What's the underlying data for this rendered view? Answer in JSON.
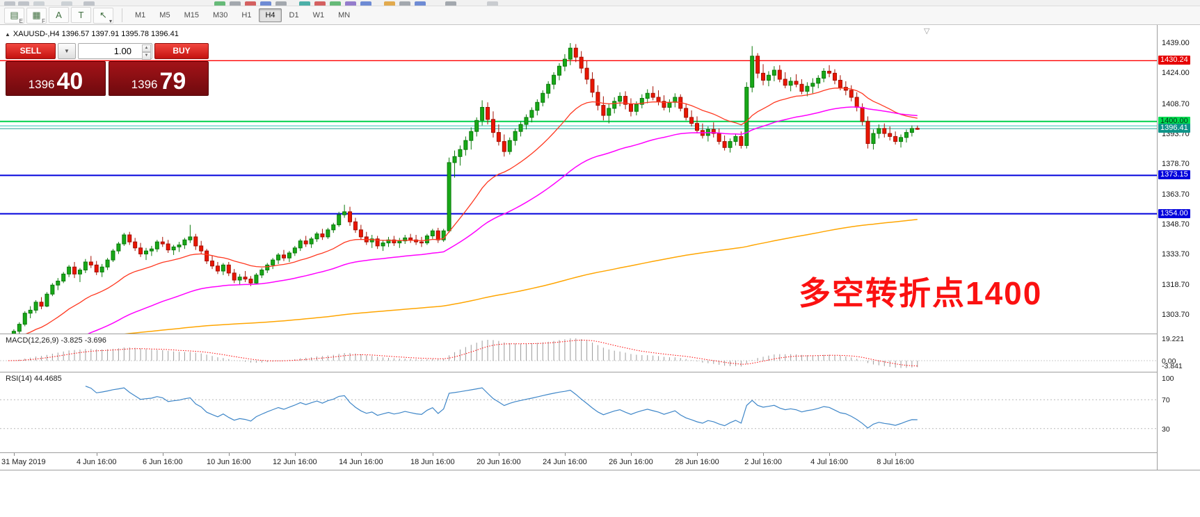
{
  "toolbar": {
    "tools": [
      {
        "name": "charts-icon",
        "glyph": "▤",
        "sub": "E"
      },
      {
        "name": "grid-icon",
        "glyph": "▦",
        "sub": "F"
      },
      {
        "name": "a-tool-icon",
        "glyph": "A",
        "sub": ""
      },
      {
        "name": "text-label-icon",
        "glyph": "T",
        "sub": ""
      },
      {
        "name": "pointer-tool-icon",
        "glyph": "↖",
        "sub": "▾"
      }
    ],
    "timeframes": [
      {
        "label": "M1",
        "active": false
      },
      {
        "label": "M5",
        "active": false
      },
      {
        "label": "M15",
        "active": false
      },
      {
        "label": "M30",
        "active": false
      },
      {
        "label": "H1",
        "active": false
      },
      {
        "label": "H4",
        "active": true
      },
      {
        "label": "D1",
        "active": false
      },
      {
        "label": "W1",
        "active": false
      },
      {
        "label": "MN",
        "active": false
      }
    ]
  },
  "cutoff_icons": [
    {
      "x": 6,
      "c": "#b9bec4"
    },
    {
      "x": 26,
      "c": "#b9bec4"
    },
    {
      "x": 48,
      "c": "#c8cdd2"
    },
    {
      "x": 88,
      "c": "#c8cdd2"
    },
    {
      "x": 120,
      "c": "#b9bec4"
    },
    {
      "x": 308,
      "c": "#57b46a"
    },
    {
      "x": 330,
      "c": "#9aa0a6"
    },
    {
      "x": 352,
      "c": "#d05050"
    },
    {
      "x": 374,
      "c": "#5f7fd0"
    },
    {
      "x": 396,
      "c": "#9aa0a6"
    },
    {
      "x": 430,
      "c": "#3aa7a0"
    },
    {
      "x": 452,
      "c": "#d05050"
    },
    {
      "x": 474,
      "c": "#57b46a"
    },
    {
      "x": 496,
      "c": "#8a6fc8"
    },
    {
      "x": 518,
      "c": "#5f7fd0"
    },
    {
      "x": 552,
      "c": "#e0a23c"
    },
    {
      "x": 574,
      "c": "#9aa0a6"
    },
    {
      "x": 596,
      "c": "#5f7fd0"
    },
    {
      "x": 640,
      "c": "#9aa0a6"
    },
    {
      "x": 700,
      "c": "#c4c8cc"
    }
  ],
  "chart": {
    "symbol_header": "XAUUSD-,H4  1396.57 1397.91 1395.78 1396.41",
    "collapse_glyph": "▲",
    "shift_marker_glyph": "▽",
    "annotation_text": "多空转折点1400"
  },
  "one_click": {
    "sell_label": "SELL",
    "buy_label": "BUY",
    "volume": "1.00",
    "dropdown_glyph": "▼",
    "spinner_up": "▲",
    "spinner_down": "▼",
    "bid_int": "1396",
    "bid_pips": "40",
    "ask_int": "1396",
    "ask_pips": "79"
  },
  "panels": {
    "macd_label": "MACD(12,26,9) -3.825 -3.696",
    "rsi_label": "RSI(14) 44.4685"
  },
  "chart_data": {
    "type": "candlestick",
    "symbol": "XAUUSD-",
    "timeframe": "H4",
    "last_ohlc": {
      "open": 1396.57,
      "high": 1397.91,
      "low": 1395.78,
      "close": 1396.41
    },
    "y_ticks": [
      "1439.00",
      "1424.00",
      "1408.70",
      "1393.70",
      "1378.70",
      "1363.70",
      "1348.70",
      "1333.70",
      "1318.70",
      "1303.70"
    ],
    "hlines": [
      {
        "price": 1430.24,
        "color": "#ff0000",
        "width": 1.4,
        "label": "1430.24",
        "label_bg": "#e60000",
        "label_fg": "#ffffff"
      },
      {
        "price": 1400.0,
        "color": "#00d24b",
        "width": 2,
        "label": "1400.00",
        "label_bg": "#00dc50",
        "label_fg": "#00341a"
      },
      {
        "price": 1397.8,
        "color": "#2fbfb0",
        "width": 1,
        "label": null,
        "label_bg": null,
        "label_fg": null
      },
      {
        "price": 1396.41,
        "color": "#1ba393",
        "width": 1,
        "label": "1396.41",
        "label_bg": "#0e9488",
        "label_fg": "#ffffff"
      },
      {
        "price": 1373.15,
        "color": "#0000dc",
        "width": 2,
        "label": "1373.15",
        "label_bg": "#0000dc",
        "label_fg": "#ffffff"
      },
      {
        "price": 1354.0,
        "color": "#0000dc",
        "width": 2,
        "label": "1354.00",
        "label_bg": "#0000dc",
        "label_fg": "#ffffff"
      }
    ],
    "style": {
      "bull": "#18a818",
      "bull_border": "#0b7a0b",
      "bear": "#ea1500",
      "bear_border": "#a50f00"
    },
    "moving_averages": [
      {
        "period": 21,
        "color": "#ff3820",
        "width": 1.3,
        "seed": null
      },
      {
        "period": 55,
        "color": "#ff00ff",
        "width": 1.5,
        "seed": 1278
      },
      {
        "period": 300,
        "color": "#ffa500",
        "width": 1.5,
        "seed": 1290
      }
    ],
    "macd": {
      "params": "12,26,9",
      "main_value": -3.825,
      "signal_value": -3.696,
      "hist_color": "#9b9b9b",
      "signal_color": "#ff0000",
      "axis": [
        {
          "text": "19.221",
          "v": 19.221
        },
        {
          "text": "0.00",
          "v": 0
        },
        {
          "text": "-3.841",
          "v": -3.841
        }
      ]
    },
    "rsi": {
      "period": 14,
      "value": 44.4685,
      "color": "#3e86c8",
      "levels": [
        70,
        30
      ],
      "axis": [
        {
          "text": "100",
          "v": 100
        },
        {
          "text": "70",
          "v": 70
        },
        {
          "text": "30",
          "v": 30
        }
      ]
    },
    "x_labels": [
      {
        "text": "31 May 2019",
        "bar": 1
      },
      {
        "text": "4 Jun 16:00",
        "bar": 16
      },
      {
        "text": "6 Jun 16:00",
        "bar": 28
      },
      {
        "text": "10 Jun 16:00",
        "bar": 40
      },
      {
        "text": "12 Jun 16:00",
        "bar": 52
      },
      {
        "text": "14 Jun 16:00",
        "bar": 64
      },
      {
        "text": "18 Jun 16:00",
        "bar": 77
      },
      {
        "text": "20 Jun 16:00",
        "bar": 89
      },
      {
        "text": "24 Jun 16:00",
        "bar": 101
      },
      {
        "text": "26 Jun 16:00",
        "bar": 113
      },
      {
        "text": "28 Jun 16:00",
        "bar": 125
      },
      {
        "text": "2 Jul 16:00",
        "bar": 137
      },
      {
        "text": "4 Jul 16:00",
        "bar": 149
      },
      {
        "text": "8 Jul 16:00",
        "bar": 161
      }
    ],
    "candles": [
      [
        1288.5,
        1293.0,
        1287.0,
        1292.0
      ],
      [
        1292.0,
        1296.5,
        1290.5,
        1295.5
      ],
      [
        1295.5,
        1300.0,
        1294.0,
        1299.0
      ],
      [
        1299.0,
        1305.5,
        1298.0,
        1304.5
      ],
      [
        1304.5,
        1308.0,
        1302.0,
        1306.0
      ],
      [
        1306.0,
        1311.0,
        1304.5,
        1310.0
      ],
      [
        1310.0,
        1312.5,
        1306.5,
        1308.0
      ],
      [
        1308.0,
        1315.0,
        1307.5,
        1314.0
      ],
      [
        1314.0,
        1319.5,
        1313.0,
        1318.5
      ],
      [
        1318.5,
        1322.0,
        1316.0,
        1320.5
      ],
      [
        1320.5,
        1325.0,
        1319.5,
        1324.0
      ],
      [
        1324.0,
        1328.5,
        1322.5,
        1327.5
      ],
      [
        1327.5,
        1330.0,
        1322.0,
        1324.0
      ],
      [
        1324.0,
        1327.0,
        1320.0,
        1326.0
      ],
      [
        1326.0,
        1331.5,
        1324.5,
        1330.0
      ],
      [
        1330.0,
        1333.0,
        1327.0,
        1328.5
      ],
      [
        1328.5,
        1330.5,
        1323.5,
        1325.0
      ],
      [
        1325.0,
        1329.0,
        1322.5,
        1327.5
      ],
      [
        1327.5,
        1332.0,
        1326.0,
        1331.0
      ],
      [
        1331.0,
        1336.5,
        1330.0,
        1335.5
      ],
      [
        1335.5,
        1340.0,
        1334.0,
        1339.0
      ],
      [
        1339.0,
        1344.5,
        1338.0,
        1343.5
      ],
      [
        1343.5,
        1345.0,
        1338.5,
        1340.0
      ],
      [
        1340.0,
        1342.0,
        1335.5,
        1337.0
      ],
      [
        1337.0,
        1339.5,
        1332.5,
        1334.0
      ],
      [
        1334.0,
        1337.0,
        1331.0,
        1335.5
      ],
      [
        1335.5,
        1338.0,
        1333.0,
        1336.5
      ],
      [
        1336.5,
        1341.0,
        1335.0,
        1340.0
      ],
      [
        1340.0,
        1342.5,
        1337.5,
        1339.0
      ],
      [
        1339.0,
        1341.0,
        1334.5,
        1336.0
      ],
      [
        1336.0,
        1338.5,
        1333.5,
        1337.5
      ],
      [
        1337.5,
        1340.0,
        1335.0,
        1338.5
      ],
      [
        1338.5,
        1342.0,
        1336.5,
        1341.0
      ],
      [
        1341.0,
        1348.5,
        1339.5,
        1342.5
      ],
      [
        1342.5,
        1344.0,
        1336.0,
        1338.0
      ],
      [
        1338.0,
        1340.5,
        1334.0,
        1335.5
      ],
      [
        1335.5,
        1336.5,
        1329.0,
        1330.5
      ],
      [
        1330.5,
        1333.0,
        1326.5,
        1328.0
      ],
      [
        1328.0,
        1330.0,
        1324.0,
        1325.5
      ],
      [
        1325.5,
        1329.5,
        1323.5,
        1328.5
      ],
      [
        1328.5,
        1330.0,
        1323.0,
        1324.5
      ],
      [
        1324.5,
        1326.5,
        1319.5,
        1321.0
      ],
      [
        1321.0,
        1324.0,
        1318.5,
        1322.5
      ],
      [
        1322.5,
        1325.5,
        1320.0,
        1321.5
      ],
      [
        1321.5,
        1323.0,
        1318.0,
        1319.5
      ],
      [
        1319.5,
        1324.5,
        1319.0,
        1323.5
      ],
      [
        1323.5,
        1327.0,
        1322.0,
        1326.0
      ],
      [
        1326.0,
        1329.5,
        1324.5,
        1328.5
      ],
      [
        1328.5,
        1332.0,
        1326.5,
        1331.0
      ],
      [
        1331.0,
        1334.5,
        1329.0,
        1333.5
      ],
      [
        1333.5,
        1336.0,
        1330.5,
        1332.0
      ],
      [
        1332.0,
        1335.5,
        1330.0,
        1334.5
      ],
      [
        1334.5,
        1338.0,
        1333.0,
        1337.0
      ],
      [
        1337.0,
        1341.5,
        1335.5,
        1340.5
      ],
      [
        1340.5,
        1343.0,
        1337.5,
        1339.0
      ],
      [
        1339.0,
        1342.5,
        1337.0,
        1341.5
      ],
      [
        1341.5,
        1345.0,
        1340.0,
        1344.0
      ],
      [
        1344.0,
        1346.5,
        1341.0,
        1342.5
      ],
      [
        1342.5,
        1347.0,
        1341.5,
        1346.0
      ],
      [
        1346.0,
        1349.5,
        1344.5,
        1348.5
      ],
      [
        1348.5,
        1355.0,
        1347.5,
        1353.5
      ],
      [
        1353.5,
        1358.5,
        1352.0,
        1355.0
      ],
      [
        1355.0,
        1357.5,
        1348.0,
        1350.0
      ],
      [
        1350.0,
        1352.0,
        1344.5,
        1346.0
      ],
      [
        1346.0,
        1348.5,
        1341.0,
        1342.5
      ],
      [
        1342.5,
        1345.0,
        1338.5,
        1340.0
      ],
      [
        1340.0,
        1343.5,
        1337.0,
        1341.5
      ],
      [
        1341.5,
        1343.0,
        1336.5,
        1338.0
      ],
      [
        1338.0,
        1341.0,
        1335.5,
        1339.5
      ],
      [
        1339.5,
        1342.5,
        1337.5,
        1341.0
      ],
      [
        1341.0,
        1343.0,
        1338.0,
        1339.5
      ],
      [
        1339.5,
        1342.0,
        1337.0,
        1340.5
      ],
      [
        1340.5,
        1343.5,
        1339.0,
        1342.0
      ],
      [
        1342.0,
        1344.0,
        1339.5,
        1341.0
      ],
      [
        1341.0,
        1343.5,
        1338.5,
        1340.0
      ],
      [
        1340.0,
        1342.5,
        1337.5,
        1339.5
      ],
      [
        1339.5,
        1344.0,
        1338.5,
        1343.0
      ],
      [
        1343.0,
        1346.5,
        1341.5,
        1345.5
      ],
      [
        1345.5,
        1347.0,
        1339.5,
        1341.0
      ],
      [
        1341.0,
        1346.5,
        1340.0,
        1345.5
      ],
      [
        1345.5,
        1382.0,
        1344.5,
        1379.5
      ],
      [
        1379.5,
        1385.5,
        1372.0,
        1382.5
      ],
      [
        1382.5,
        1388.0,
        1378.0,
        1386.0
      ],
      [
        1386.0,
        1392.5,
        1383.0,
        1390.5
      ],
      [
        1390.5,
        1397.0,
        1386.0,
        1395.0
      ],
      [
        1395.0,
        1402.0,
        1392.5,
        1400.5
      ],
      [
        1400.5,
        1410.5,
        1398.0,
        1407.0
      ],
      [
        1407.0,
        1409.5,
        1398.5,
        1401.0
      ],
      [
        1401.0,
        1405.0,
        1392.0,
        1394.5
      ],
      [
        1394.5,
        1398.5,
        1388.0,
        1390.0
      ],
      [
        1390.0,
        1393.5,
        1382.5,
        1385.0
      ],
      [
        1385.0,
        1392.0,
        1383.5,
        1390.5
      ],
      [
        1390.5,
        1396.5,
        1388.0,
        1395.0
      ],
      [
        1395.0,
        1400.0,
        1392.5,
        1398.5
      ],
      [
        1398.5,
        1403.5,
        1396.0,
        1402.0
      ],
      [
        1402.0,
        1407.0,
        1399.5,
        1405.5
      ],
      [
        1405.5,
        1411.0,
        1403.0,
        1409.5
      ],
      [
        1409.5,
        1415.5,
        1407.5,
        1414.0
      ],
      [
        1414.0,
        1420.0,
        1411.5,
        1418.5
      ],
      [
        1418.5,
        1424.5,
        1416.0,
        1423.0
      ],
      [
        1423.0,
        1429.0,
        1420.5,
        1427.5
      ],
      [
        1427.5,
        1433.5,
        1425.0,
        1431.0
      ],
      [
        1431.0,
        1439.0,
        1428.0,
        1436.5
      ],
      [
        1436.5,
        1438.5,
        1429.5,
        1432.0
      ],
      [
        1432.0,
        1435.0,
        1424.0,
        1426.5
      ],
      [
        1426.5,
        1430.0,
        1418.5,
        1421.0
      ],
      [
        1421.0,
        1424.5,
        1412.0,
        1414.5
      ],
      [
        1414.5,
        1418.0,
        1405.5,
        1408.0
      ],
      [
        1408.0,
        1412.5,
        1400.5,
        1403.0
      ],
      [
        1403.0,
        1409.0,
        1399.0,
        1406.5
      ],
      [
        1406.5,
        1412.0,
        1404.0,
        1410.0
      ],
      [
        1410.0,
        1414.5,
        1407.5,
        1412.5
      ],
      [
        1412.5,
        1415.0,
        1406.0,
        1408.5
      ],
      [
        1408.5,
        1411.5,
        1402.5,
        1405.0
      ],
      [
        1405.0,
        1410.0,
        1403.0,
        1408.5
      ],
      [
        1408.5,
        1413.5,
        1406.5,
        1411.5
      ],
      [
        1411.5,
        1416.0,
        1409.0,
        1414.0
      ],
      [
        1414.0,
        1417.5,
        1410.5,
        1412.0
      ],
      [
        1412.0,
        1415.5,
        1408.0,
        1410.0
      ],
      [
        1410.0,
        1413.0,
        1405.5,
        1407.0
      ],
      [
        1407.0,
        1411.0,
        1404.5,
        1409.5
      ],
      [
        1409.5,
        1414.0,
        1407.0,
        1412.0
      ],
      [
        1412.0,
        1413.5,
        1405.0,
        1406.5
      ],
      [
        1406.5,
        1409.0,
        1400.5,
        1402.0
      ],
      [
        1402.0,
        1405.5,
        1397.5,
        1399.0
      ],
      [
        1399.0,
        1402.5,
        1394.0,
        1395.5
      ],
      [
        1395.5,
        1399.0,
        1391.5,
        1393.0
      ],
      [
        1393.0,
        1397.5,
        1390.0,
        1396.0
      ],
      [
        1396.0,
        1399.5,
        1392.0,
        1394.0
      ],
      [
        1394.0,
        1396.5,
        1388.5,
        1390.0
      ],
      [
        1390.0,
        1393.0,
        1385.5,
        1387.0
      ],
      [
        1387.0,
        1391.5,
        1384.5,
        1390.0
      ],
      [
        1390.0,
        1394.0,
        1388.0,
        1392.5
      ],
      [
        1392.5,
        1395.0,
        1386.5,
        1388.0
      ],
      [
        1388.0,
        1419.5,
        1386.5,
        1417.0
      ],
      [
        1417.0,
        1437.5,
        1414.5,
        1432.5
      ],
      [
        1432.5,
        1434.0,
        1421.5,
        1424.0
      ],
      [
        1424.0,
        1428.5,
        1418.0,
        1420.5
      ],
      [
        1420.5,
        1425.0,
        1417.5,
        1423.0
      ],
      [
        1423.0,
        1427.5,
        1420.0,
        1425.5
      ],
      [
        1425.5,
        1428.0,
        1419.5,
        1421.0
      ],
      [
        1421.0,
        1424.5,
        1416.5,
        1418.0
      ],
      [
        1418.0,
        1422.0,
        1415.0,
        1420.0
      ],
      [
        1420.0,
        1423.5,
        1417.0,
        1418.5
      ],
      [
        1418.5,
        1421.0,
        1413.5,
        1415.0
      ],
      [
        1415.0,
        1419.5,
        1412.5,
        1417.5
      ],
      [
        1417.5,
        1421.5,
        1414.0,
        1419.0
      ],
      [
        1419.0,
        1423.0,
        1416.5,
        1421.5
      ],
      [
        1421.5,
        1426.5,
        1419.5,
        1425.0
      ],
      [
        1425.0,
        1428.0,
        1422.0,
        1424.0
      ],
      [
        1424.0,
        1426.0,
        1418.5,
        1420.5
      ],
      [
        1420.5,
        1423.0,
        1415.5,
        1417.0
      ],
      [
        1417.0,
        1420.0,
        1413.0,
        1415.5
      ],
      [
        1415.5,
        1418.0,
        1410.0,
        1412.0
      ],
      [
        1412.0,
        1414.5,
        1405.0,
        1407.0
      ],
      [
        1407.0,
        1409.0,
        1398.0,
        1400.0
      ],
      [
        1400.0,
        1402.5,
        1386.5,
        1389.0
      ],
      [
        1389.0,
        1396.0,
        1386.0,
        1394.0
      ],
      [
        1394.0,
        1398.5,
        1391.5,
        1396.5
      ],
      [
        1396.5,
        1399.0,
        1392.0,
        1394.0
      ],
      [
        1394.0,
        1397.5,
        1390.5,
        1392.5
      ],
      [
        1392.5,
        1395.0,
        1388.5,
        1390.0
      ],
      [
        1390.0,
        1393.5,
        1387.0,
        1392.0
      ],
      [
        1392.0,
        1396.0,
        1389.5,
        1394.5
      ],
      [
        1394.5,
        1398.0,
        1392.5,
        1396.5
      ],
      [
        1396.57,
        1397.91,
        1395.78,
        1396.41
      ]
    ]
  }
}
